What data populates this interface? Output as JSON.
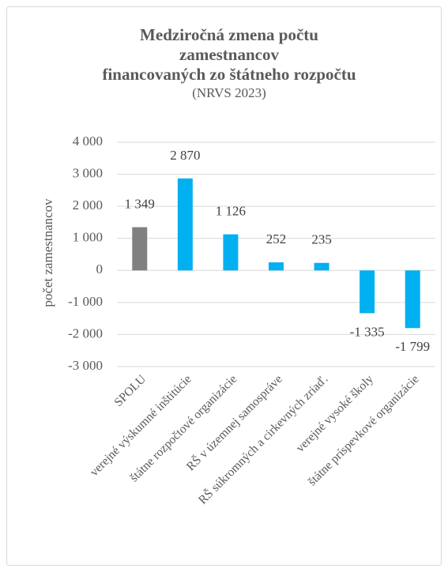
{
  "chart_data": {
    "type": "bar",
    "title": [
      "Medziročná zmena počtu",
      "zamestnancov",
      "financovaných zo štátneho rozpočtu"
    ],
    "subtitle": "(NRVS 2023)",
    "y_label": "počet zamestnancov",
    "categories": [
      "SPOLU",
      "verejné výskumné inštitúcie",
      "štátne rozpočtové organizácie",
      "RŠ v územnej samospráve",
      "RŠ súkromných a cirkevných zriaď.",
      "verejné vysoké školy",
      "štátne príspevkové organizácie"
    ],
    "values": [
      1349,
      2870,
      1126,
      252,
      235,
      -1335,
      -1799
    ],
    "value_labels": [
      "1 349",
      "2 870",
      "1 126",
      "252",
      "235",
      "-1 335",
      "-1 799"
    ],
    "colors": [
      "#808080",
      "#00b0f0",
      "#00b0f0",
      "#00b0f0",
      "#00b0f0",
      "#00b0f0",
      "#00b0f0"
    ],
    "ylim": [
      -3000,
      4000
    ],
    "yticks": [
      {
        "value": -3000,
        "label": "-3 000"
      },
      {
        "value": -2000,
        "label": "-2 000"
      },
      {
        "value": -1000,
        "label": "-1 000"
      },
      0,
      {
        "value": 1000,
        "label": "1 000"
      },
      {
        "value": 2000,
        "label": "2 000"
      },
      {
        "value": 3000,
        "label": "3 000"
      },
      {
        "value": 4000,
        "label": "4 000"
      }
    ],
    "grid": true
  }
}
